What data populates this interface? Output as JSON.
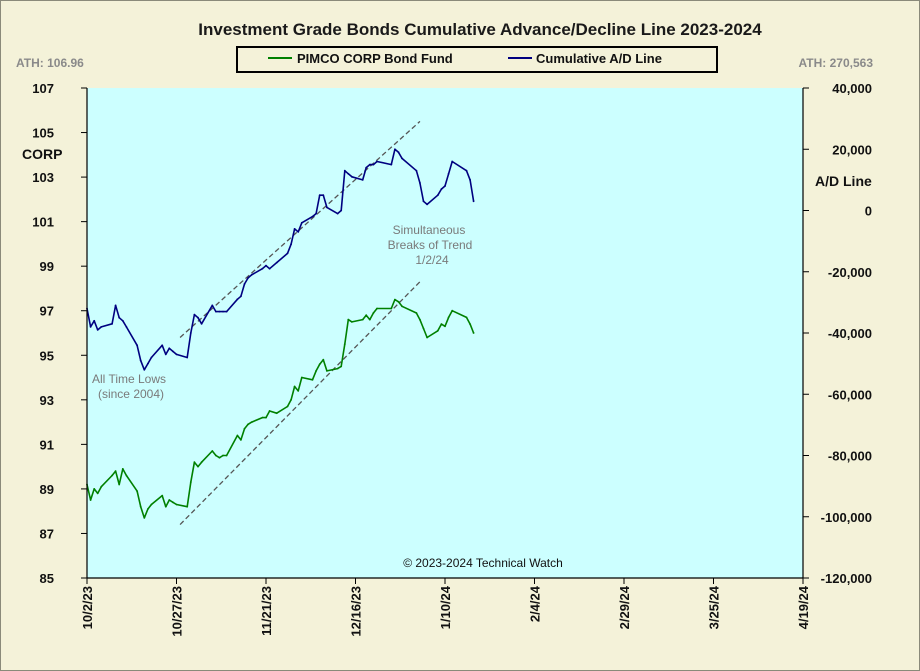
{
  "chart_data": {
    "type": "line",
    "title": "Investment Grade Bonds Cumulative Advance/Decline Line 2023-2024",
    "ath_left": "ATH: 106.96",
    "ath_right": "ATH: 270,563",
    "ylabel_left": "CORP",
    "ylabel_right": "A/D Line",
    "ylim_left": [
      85,
      107
    ],
    "ylim_right": [
      -120000,
      40000
    ],
    "yticks_left": [
      "107",
      "105",
      "103",
      "101",
      "99",
      "97",
      "95",
      "93",
      "91",
      "89",
      "87",
      "85"
    ],
    "yticks_right": [
      "40,000",
      "20,000",
      "0",
      "-20,000",
      "-40,000",
      "-60,000",
      "-80,000",
      "-100,000",
      "-120,000"
    ],
    "xticks": [
      "10/2/23",
      "10/27/23",
      "11/21/23",
      "12/16/23",
      "1/10/24",
      "2/4/24",
      "2/29/24",
      "3/25/24",
      "4/19/24"
    ],
    "xlim": [
      "2023-10-02",
      "2024-04-19"
    ],
    "legend": [
      "PIMCO CORP Bond Fund",
      "Cumulative A/D Line"
    ],
    "legend_position": "top-center",
    "annotations": {
      "lows_line1": "All Time Lows",
      "lows_line2": "(since 2004)",
      "breaks_line1": "Simultaneous",
      "breaks_line2": "Breaks of Trend",
      "breaks_line3": "1/2/24"
    },
    "copyright": "© 2023-2024  Technical Watch",
    "colors": {
      "plot_bg": "#ccffff",
      "page_bg": "#f4f2d9",
      "corp": "#008000",
      "ad": "#000080",
      "trend": "#555555"
    },
    "series": [
      {
        "name": "PIMCO CORP Bond Fund",
        "axis": "left",
        "x": [
          "2023-10-02",
          "2023-10-03",
          "2023-10-04",
          "2023-10-05",
          "2023-10-06",
          "2023-10-09",
          "2023-10-10",
          "2023-10-11",
          "2023-10-12",
          "2023-10-13",
          "2023-10-16",
          "2023-10-17",
          "2023-10-18",
          "2023-10-19",
          "2023-10-20",
          "2023-10-23",
          "2023-10-24",
          "2023-10-25",
          "2023-10-26",
          "2023-10-27",
          "2023-10-30",
          "2023-10-31",
          "2023-11-01",
          "2023-11-02",
          "2023-11-03",
          "2023-11-06",
          "2023-11-07",
          "2023-11-08",
          "2023-11-09",
          "2023-11-10",
          "2023-11-13",
          "2023-11-14",
          "2023-11-15",
          "2023-11-16",
          "2023-11-17",
          "2023-11-20",
          "2023-11-21",
          "2023-11-22",
          "2023-11-24",
          "2023-11-27",
          "2023-11-28",
          "2023-11-29",
          "2023-11-30",
          "2023-12-01",
          "2023-12-04",
          "2023-12-05",
          "2023-12-06",
          "2023-12-07",
          "2023-12-08",
          "2023-12-11",
          "2023-12-12",
          "2023-12-13",
          "2023-12-14",
          "2023-12-15",
          "2023-12-18",
          "2023-12-19",
          "2023-12-20",
          "2023-12-21",
          "2023-12-22",
          "2023-12-26",
          "2023-12-27",
          "2023-12-28",
          "2023-12-29",
          "2024-01-02",
          "2024-01-03",
          "2024-01-04",
          "2024-01-05",
          "2024-01-08",
          "2024-01-09",
          "2024-01-10",
          "2024-01-11",
          "2024-01-12",
          "2024-01-16",
          "2024-01-17",
          "2024-01-18"
        ],
        "values": [
          89.2,
          88.5,
          89.0,
          88.8,
          89.1,
          89.6,
          89.8,
          89.2,
          89.9,
          89.6,
          88.9,
          88.2,
          87.7,
          88.1,
          88.3,
          88.7,
          88.2,
          88.5,
          88.4,
          88.3,
          88.2,
          89.3,
          90.2,
          90.0,
          90.2,
          90.7,
          90.5,
          90.4,
          90.5,
          90.5,
          91.4,
          91.2,
          91.7,
          91.9,
          92.0,
          92.2,
          92.2,
          92.5,
          92.4,
          92.7,
          93.0,
          93.6,
          93.4,
          94.0,
          93.9,
          94.3,
          94.6,
          94.8,
          94.3,
          94.4,
          94.5,
          95.5,
          96.6,
          96.5,
          96.6,
          96.8,
          96.6,
          96.9,
          97.1,
          97.1,
          97.5,
          97.4,
          97.2,
          96.9,
          96.6,
          96.2,
          95.8,
          96.1,
          96.4,
          96.3,
          96.7,
          97.0,
          96.7,
          96.4,
          96.0
        ]
      },
      {
        "name": "Cumulative A/D Line",
        "axis": "right",
        "x": [
          "2023-10-02",
          "2023-10-03",
          "2023-10-04",
          "2023-10-05",
          "2023-10-06",
          "2023-10-09",
          "2023-10-10",
          "2023-10-11",
          "2023-10-12",
          "2023-10-13",
          "2023-10-16",
          "2023-10-17",
          "2023-10-18",
          "2023-10-19",
          "2023-10-20",
          "2023-10-23",
          "2023-10-24",
          "2023-10-25",
          "2023-10-26",
          "2023-10-27",
          "2023-10-30",
          "2023-10-31",
          "2023-11-01",
          "2023-11-02",
          "2023-11-03",
          "2023-11-06",
          "2023-11-07",
          "2023-11-08",
          "2023-11-09",
          "2023-11-10",
          "2023-11-13",
          "2023-11-14",
          "2023-11-15",
          "2023-11-16",
          "2023-11-17",
          "2023-11-20",
          "2023-11-21",
          "2023-11-22",
          "2023-11-24",
          "2023-11-27",
          "2023-11-28",
          "2023-11-29",
          "2023-11-30",
          "2023-12-01",
          "2023-12-04",
          "2023-12-05",
          "2023-12-06",
          "2023-12-07",
          "2023-12-08",
          "2023-12-11",
          "2023-12-12",
          "2023-12-13",
          "2023-12-14",
          "2023-12-15",
          "2023-12-18",
          "2023-12-19",
          "2023-12-20",
          "2023-12-21",
          "2023-12-22",
          "2023-12-26",
          "2023-12-27",
          "2023-12-28",
          "2023-12-29",
          "2024-01-02",
          "2024-01-03",
          "2024-01-04",
          "2024-01-05",
          "2024-01-08",
          "2024-01-09",
          "2024-01-10",
          "2024-01-11",
          "2024-01-12",
          "2024-01-16",
          "2024-01-17",
          "2024-01-18"
        ],
        "values": [
          -32000,
          -38000,
          -36000,
          -39000,
          -38000,
          -37000,
          -31000,
          -35000,
          -36000,
          -38000,
          -44000,
          -49000,
          -52000,
          -50000,
          -48000,
          -44000,
          -47000,
          -45000,
          -46000,
          -47000,
          -48000,
          -40000,
          -34000,
          -35000,
          -37000,
          -31000,
          -33000,
          -33000,
          -33000,
          -33000,
          -29000,
          -28000,
          -24000,
          -22000,
          -21000,
          -19000,
          -18000,
          -19000,
          -17000,
          -14000,
          -11000,
          -6000,
          -7000,
          -4000,
          -2000,
          -1000,
          5000,
          5000,
          1000,
          -1000,
          0,
          13000,
          12000,
          11000,
          10000,
          14000,
          15000,
          15000,
          16000,
          15000,
          20000,
          19000,
          17000,
          13000,
          9000,
          3000,
          2000,
          5000,
          7000,
          8000,
          12000,
          16000,
          13000,
          10000,
          3000
        ]
      }
    ]
  }
}
